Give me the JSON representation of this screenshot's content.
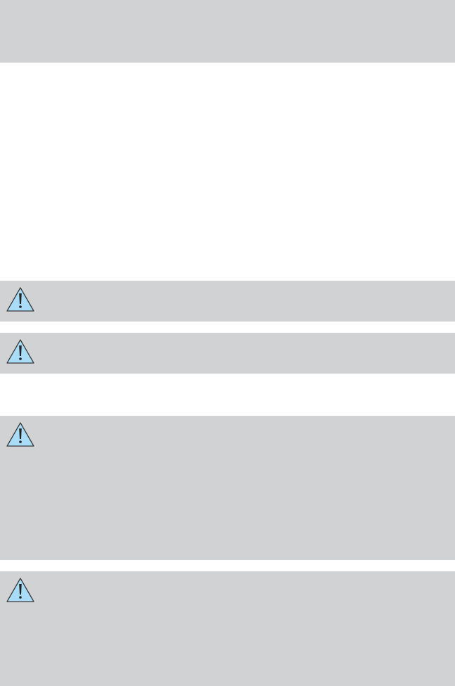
{
  "header_band": {
    "color": "#d1d2d4"
  },
  "warnings": [
    {
      "icon": "warning-triangle-icon"
    },
    {
      "icon": "warning-triangle-icon"
    },
    {
      "icon": "warning-triangle-icon"
    },
    {
      "icon": "warning-triangle-icon"
    }
  ],
  "colors": {
    "panel": "#d1d2d4",
    "icon_fill": "#a9ddf7",
    "icon_stroke": "#3a3a3a"
  }
}
